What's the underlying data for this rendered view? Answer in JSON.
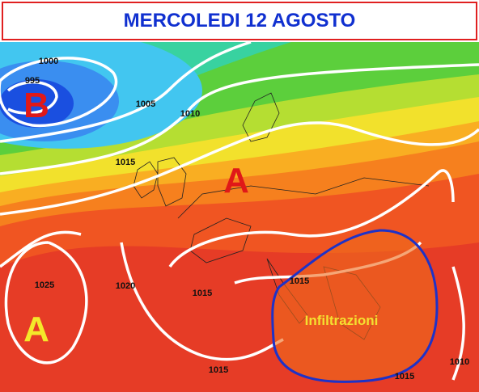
{
  "header": {
    "title": "MERCOLEDI 12 AGOSTO"
  },
  "pressure_centers": [
    {
      "label": "B"
    },
    {
      "label": "A"
    },
    {
      "label": "A"
    }
  ],
  "isobar_labels": [
    "1000",
    "995",
    "1005",
    "1010",
    "1015",
    "1015",
    "1025",
    "1020",
    "1015",
    "1015",
    "1015",
    "1010"
  ],
  "annotation": "Infiltrazioni"
}
